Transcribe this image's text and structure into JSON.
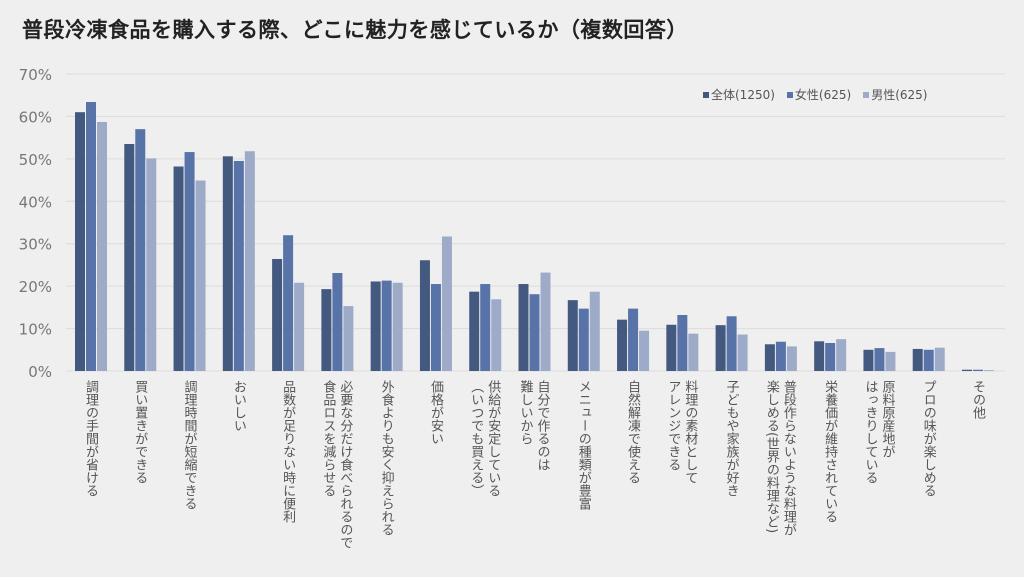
{
  "title": "普段冷凍食品を購入する際、どこに魅力を感じているか（複数回答）",
  "chart_data": {
    "type": "bar",
    "title": "普段冷凍食品を購入する際、どこに魅力を感じているか（複数回答）",
    "xlabel": "",
    "ylabel": "",
    "ylim": [
      0,
      70
    ],
    "yticks": [
      "0%",
      "10%",
      "20%",
      "30%",
      "40%",
      "50%",
      "60%",
      "70%"
    ],
    "grid": true,
    "legend_position": "top-right",
    "categories": [
      "調理の手間が省ける",
      "買い置きができる",
      "調理時間が短縮できる",
      "おいしい",
      "品数が足りない時に便利",
      "必要な分だけ食べられるので\n食品ロスを減らせる",
      "外食よりも安く抑えられる",
      "価格が安い",
      "供給が安定している\n（いつでも買える）",
      "自分で作るのは\n難しいから",
      "メニューの種類が豊富",
      "自然解凍で使える",
      "料理の素材として\nアレンジできる",
      "子どもや家族が好き",
      "普段作らないような料理が\n楽しめる(世界の料理など)",
      "栄養価が維持されている",
      "原料原産地が\nはっきりしている",
      "プロの味が楽しめる",
      "その他"
    ],
    "series": [
      {
        "name": "全体(1250)",
        "color": "#44597f",
        "values": [
          61.0,
          53.5,
          48.2,
          50.6,
          26.4,
          19.3,
          21.1,
          26.1,
          18.7,
          20.5,
          16.7,
          12.1,
          10.9,
          10.8,
          6.3,
          7.0,
          5.0,
          5.2,
          0.3
        ]
      },
      {
        "name": "女性(625)",
        "color": "#5873a8",
        "values": [
          63.4,
          57.0,
          51.6,
          49.5,
          32.0,
          23.1,
          21.3,
          20.5,
          20.5,
          18.1,
          14.7,
          14.7,
          13.2,
          12.9,
          6.9,
          6.6,
          5.4,
          5.0,
          0.3
        ]
      },
      {
        "name": "男性(625)",
        "color": "#9eabc8",
        "values": [
          58.7,
          50.1,
          44.9,
          51.8,
          20.8,
          15.3,
          20.8,
          31.7,
          16.9,
          23.2,
          18.7,
          9.5,
          8.8,
          8.6,
          5.8,
          7.5,
          4.5,
          5.5,
          0.2
        ]
      }
    ]
  }
}
